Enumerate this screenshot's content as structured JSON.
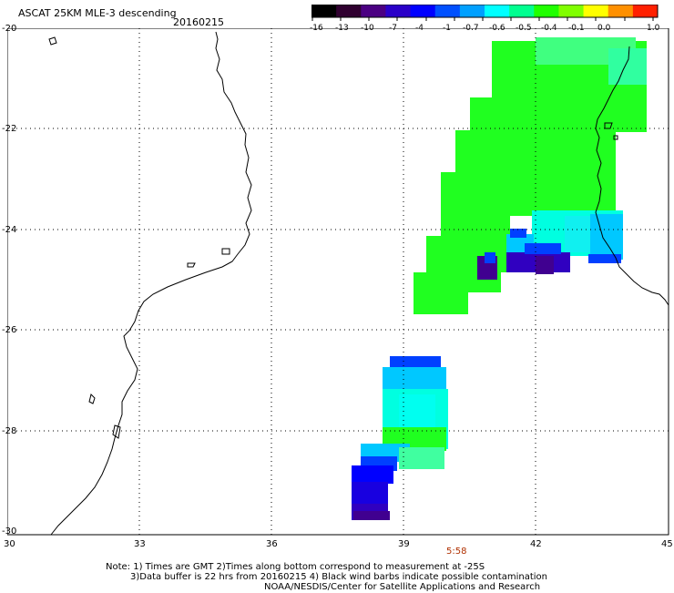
{
  "header": {
    "title": "ASCAT 25KM MLE-3 descending",
    "date": "20160215"
  },
  "colorbar": {
    "labels": [
      "-16",
      "-13",
      "-10",
      "-7",
      "-4",
      "-1",
      "-0.7",
      "-0.6",
      "-0.5",
      "-0.4",
      "-0.1",
      "0.0",
      "1.0"
    ],
    "colors": [
      "#000000",
      "#300030",
      "#4b0082",
      "#2a00c8",
      "#0000ff",
      "#0050ff",
      "#00a0ff",
      "#00ffff",
      "#00ff90",
      "#20ff00",
      "#80ff00",
      "#ffff00",
      "#ff9000",
      "#ff2000"
    ]
  },
  "map": {
    "lat_ticks": [
      "-20",
      "-22",
      "-24",
      "-26",
      "-28",
      "-30"
    ],
    "lon_ticks": [
      "30",
      "33",
      "36",
      "39",
      "42",
      "45"
    ],
    "time_label": "5:58",
    "coast_color": "#000000"
  },
  "footer": {
    "line1": "Note: 1) Times are GMT 2)Times along bottom correspond to measurement at -25S",
    "line2": "3)Data buffer is 22 hrs from 20160215 4) Black wind barbs indicate possible contamination",
    "line3": "NOAA/NESDIS/Center for Satellite Applications and Research"
  }
}
